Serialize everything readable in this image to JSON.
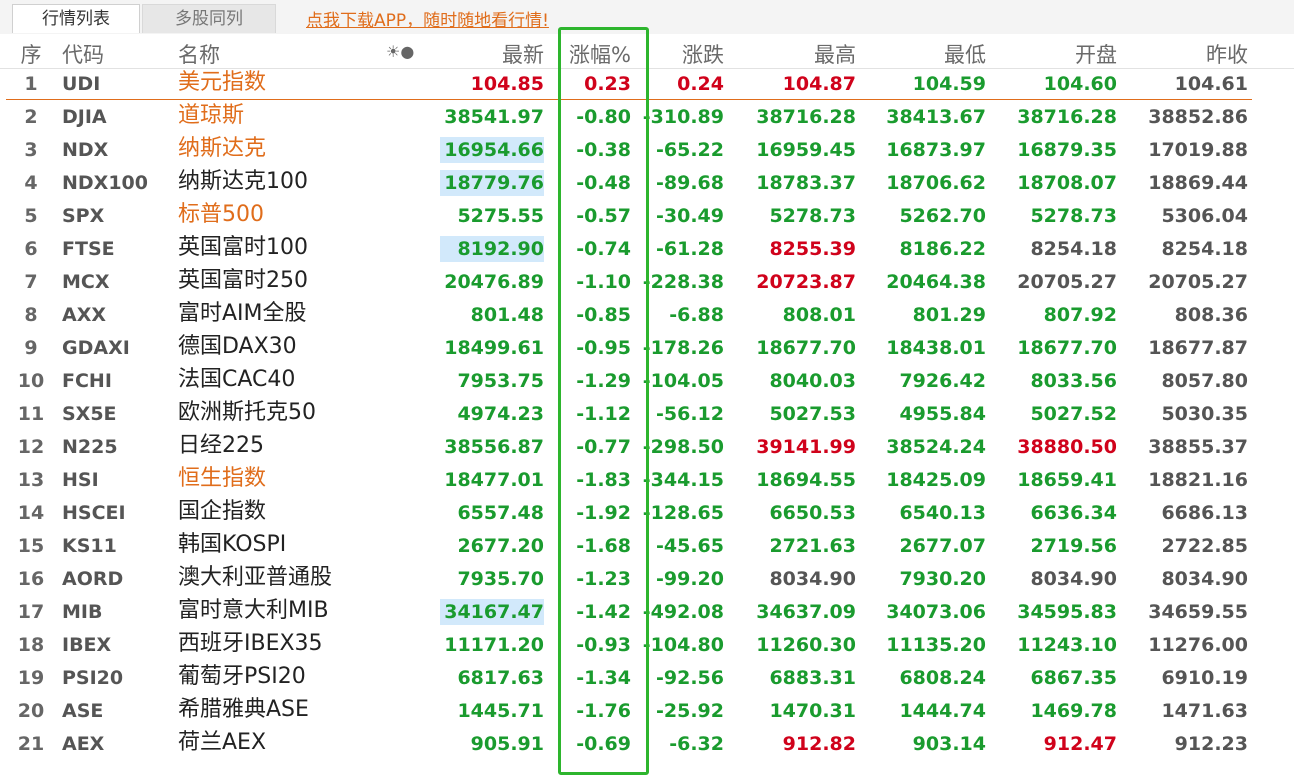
{
  "tabs": [
    "行情列表",
    "多股同列"
  ],
  "promo_link": "点我下载APP，随时随地看行情!",
  "header": {
    "seq": "序",
    "code": "代码",
    "name": "名称",
    "icons": "☀●",
    "last": "最新",
    "pct": "涨幅%",
    "chg": "涨跌",
    "high": "最高",
    "low": "最低",
    "open": "开盘",
    "prev": "昨收"
  },
  "colors": {
    "up": "#d0021b",
    "down": "#1a9b2e",
    "flat": "#555555",
    "accent": "#e06d1b",
    "highlight_box": "#2db52d",
    "cell_highlight": "#d2e9fb"
  },
  "rows": [
    {
      "seq": "1",
      "code": "UDI",
      "name": "美元指数",
      "name_hl": true,
      "last": "104.85",
      "pct": "0.23",
      "chg": "0.24",
      "high": "104.87",
      "low": "104.59",
      "open": "104.60",
      "prev": "104.61",
      "c": [
        "up",
        "up",
        "up",
        "up",
        "dn",
        "dn",
        "fl"
      ],
      "last_hl": false
    },
    {
      "seq": "2",
      "code": "DJIA",
      "name": "道琼斯",
      "name_hl": true,
      "last": "38541.97",
      "pct": "-0.80",
      "chg": "-310.89",
      "high": "38716.28",
      "low": "38413.67",
      "open": "38716.28",
      "prev": "38852.86",
      "c": [
        "dn",
        "dn",
        "dn",
        "dn",
        "dn",
        "dn",
        "fl"
      ],
      "last_hl": false
    },
    {
      "seq": "3",
      "code": "NDX",
      "name": "纳斯达克",
      "name_hl": true,
      "last": "16954.66",
      "pct": "-0.38",
      "chg": "-65.22",
      "high": "16959.45",
      "low": "16873.97",
      "open": "16879.35",
      "prev": "17019.88",
      "c": [
        "dn",
        "dn",
        "dn",
        "dn",
        "dn",
        "dn",
        "fl"
      ],
      "last_hl": true
    },
    {
      "seq": "4",
      "code": "NDX100",
      "name": "纳斯达克100",
      "name_hl": false,
      "last": "18779.76",
      "pct": "-0.48",
      "chg": "-89.68",
      "high": "18783.37",
      "low": "18706.62",
      "open": "18708.07",
      "prev": "18869.44",
      "c": [
        "dn",
        "dn",
        "dn",
        "dn",
        "dn",
        "dn",
        "fl"
      ],
      "last_hl": true
    },
    {
      "seq": "5",
      "code": "SPX",
      "name": "标普500",
      "name_hl": true,
      "last": "5275.55",
      "pct": "-0.57",
      "chg": "-30.49",
      "high": "5278.73",
      "low": "5262.70",
      "open": "5278.73",
      "prev": "5306.04",
      "c": [
        "dn",
        "dn",
        "dn",
        "dn",
        "dn",
        "dn",
        "fl"
      ],
      "last_hl": false
    },
    {
      "seq": "6",
      "code": "FTSE",
      "name": "英国富时100",
      "name_hl": false,
      "last": "8192.90",
      "pct": "-0.74",
      "chg": "-61.28",
      "high": "8255.39",
      "low": "8186.22",
      "open": "8254.18",
      "prev": "8254.18",
      "c": [
        "dn",
        "dn",
        "dn",
        "up",
        "dn",
        "fl",
        "fl"
      ],
      "last_hl": true
    },
    {
      "seq": "7",
      "code": "MCX",
      "name": "英国富时250",
      "name_hl": false,
      "last": "20476.89",
      "pct": "-1.10",
      "chg": "-228.38",
      "high": "20723.87",
      "low": "20464.38",
      "open": "20705.27",
      "prev": "20705.27",
      "c": [
        "dn",
        "dn",
        "dn",
        "up",
        "dn",
        "fl",
        "fl"
      ],
      "last_hl": false
    },
    {
      "seq": "8",
      "code": "AXX",
      "name": "富时AIM全股",
      "name_hl": false,
      "last": "801.48",
      "pct": "-0.85",
      "chg": "-6.88",
      "high": "808.01",
      "low": "801.29",
      "open": "807.92",
      "prev": "808.36",
      "c": [
        "dn",
        "dn",
        "dn",
        "dn",
        "dn",
        "dn",
        "fl"
      ],
      "last_hl": false
    },
    {
      "seq": "9",
      "code": "GDAXI",
      "name": "德国DAX30",
      "name_hl": false,
      "last": "18499.61",
      "pct": "-0.95",
      "chg": "-178.26",
      "high": "18677.70",
      "low": "18438.01",
      "open": "18677.70",
      "prev": "18677.87",
      "c": [
        "dn",
        "dn",
        "dn",
        "dn",
        "dn",
        "dn",
        "fl"
      ],
      "last_hl": false
    },
    {
      "seq": "10",
      "code": "FCHI",
      "name": "法国CAC40",
      "name_hl": false,
      "last": "7953.75",
      "pct": "-1.29",
      "chg": "-104.05",
      "high": "8040.03",
      "low": "7926.42",
      "open": "8033.56",
      "prev": "8057.80",
      "c": [
        "dn",
        "dn",
        "dn",
        "dn",
        "dn",
        "dn",
        "fl"
      ],
      "last_hl": false
    },
    {
      "seq": "11",
      "code": "SX5E",
      "name": "欧洲斯托克50",
      "name_hl": false,
      "last": "4974.23",
      "pct": "-1.12",
      "chg": "-56.12",
      "high": "5027.53",
      "low": "4955.84",
      "open": "5027.52",
      "prev": "5030.35",
      "c": [
        "dn",
        "dn",
        "dn",
        "dn",
        "dn",
        "dn",
        "fl"
      ],
      "last_hl": false
    },
    {
      "seq": "12",
      "code": "N225",
      "name": "日经225",
      "name_hl": false,
      "last": "38556.87",
      "pct": "-0.77",
      "chg": "-298.50",
      "high": "39141.99",
      "low": "38524.24",
      "open": "38880.50",
      "prev": "38855.37",
      "c": [
        "dn",
        "dn",
        "dn",
        "up",
        "dn",
        "up",
        "fl"
      ],
      "last_hl": false
    },
    {
      "seq": "13",
      "code": "HSI",
      "name": "恒生指数",
      "name_hl": true,
      "last": "18477.01",
      "pct": "-1.83",
      "chg": "-344.15",
      "high": "18694.55",
      "low": "18425.09",
      "open": "18659.41",
      "prev": "18821.16",
      "c": [
        "dn",
        "dn",
        "dn",
        "dn",
        "dn",
        "dn",
        "fl"
      ],
      "last_hl": false
    },
    {
      "seq": "14",
      "code": "HSCEI",
      "name": "国企指数",
      "name_hl": false,
      "last": "6557.48",
      "pct": "-1.92",
      "chg": "-128.65",
      "high": "6650.53",
      "low": "6540.13",
      "open": "6636.34",
      "prev": "6686.13",
      "c": [
        "dn",
        "dn",
        "dn",
        "dn",
        "dn",
        "dn",
        "fl"
      ],
      "last_hl": false
    },
    {
      "seq": "15",
      "code": "KS11",
      "name": "韩国KOSPI",
      "name_hl": false,
      "last": "2677.20",
      "pct": "-1.68",
      "chg": "-45.65",
      "high": "2721.63",
      "low": "2677.07",
      "open": "2719.56",
      "prev": "2722.85",
      "c": [
        "dn",
        "dn",
        "dn",
        "dn",
        "dn",
        "dn",
        "fl"
      ],
      "last_hl": false
    },
    {
      "seq": "16",
      "code": "AORD",
      "name": "澳大利亚普通股",
      "name_hl": false,
      "last": "7935.70",
      "pct": "-1.23",
      "chg": "-99.20",
      "high": "8034.90",
      "low": "7930.20",
      "open": "8034.90",
      "prev": "8034.90",
      "c": [
        "dn",
        "dn",
        "dn",
        "fl",
        "dn",
        "fl",
        "fl"
      ],
      "last_hl": false
    },
    {
      "seq": "17",
      "code": "MIB",
      "name": "富时意大利MIB",
      "name_hl": false,
      "last": "34167.47",
      "pct": "-1.42",
      "chg": "-492.08",
      "high": "34637.09",
      "low": "34073.06",
      "open": "34595.83",
      "prev": "34659.55",
      "c": [
        "dn",
        "dn",
        "dn",
        "dn",
        "dn",
        "dn",
        "fl"
      ],
      "last_hl": true
    },
    {
      "seq": "18",
      "code": "IBEX",
      "name": "西班牙IBEX35",
      "name_hl": false,
      "last": "11171.20",
      "pct": "-0.93",
      "chg": "-104.80",
      "high": "11260.30",
      "low": "11135.20",
      "open": "11243.10",
      "prev": "11276.00",
      "c": [
        "dn",
        "dn",
        "dn",
        "dn",
        "dn",
        "dn",
        "fl"
      ],
      "last_hl": false
    },
    {
      "seq": "19",
      "code": "PSI20",
      "name": "葡萄牙PSI20",
      "name_hl": false,
      "last": "6817.63",
      "pct": "-1.34",
      "chg": "-92.56",
      "high": "6883.31",
      "low": "6808.24",
      "open": "6867.35",
      "prev": "6910.19",
      "c": [
        "dn",
        "dn",
        "dn",
        "dn",
        "dn",
        "dn",
        "fl"
      ],
      "last_hl": false
    },
    {
      "seq": "20",
      "code": "ASE",
      "name": "希腊雅典ASE",
      "name_hl": false,
      "last": "1445.71",
      "pct": "-1.76",
      "chg": "-25.92",
      "high": "1470.31",
      "low": "1444.74",
      "open": "1469.78",
      "prev": "1471.63",
      "c": [
        "dn",
        "dn",
        "dn",
        "dn",
        "dn",
        "dn",
        "fl"
      ],
      "last_hl": false
    },
    {
      "seq": "21",
      "code": "AEX",
      "name": "荷兰AEX",
      "name_hl": false,
      "last": "905.91",
      "pct": "-0.69",
      "chg": "-6.32",
      "high": "912.82",
      "low": "903.14",
      "open": "912.47",
      "prev": "912.23",
      "c": [
        "dn",
        "dn",
        "dn",
        "up",
        "dn",
        "up",
        "fl"
      ],
      "last_hl": false
    }
  ]
}
